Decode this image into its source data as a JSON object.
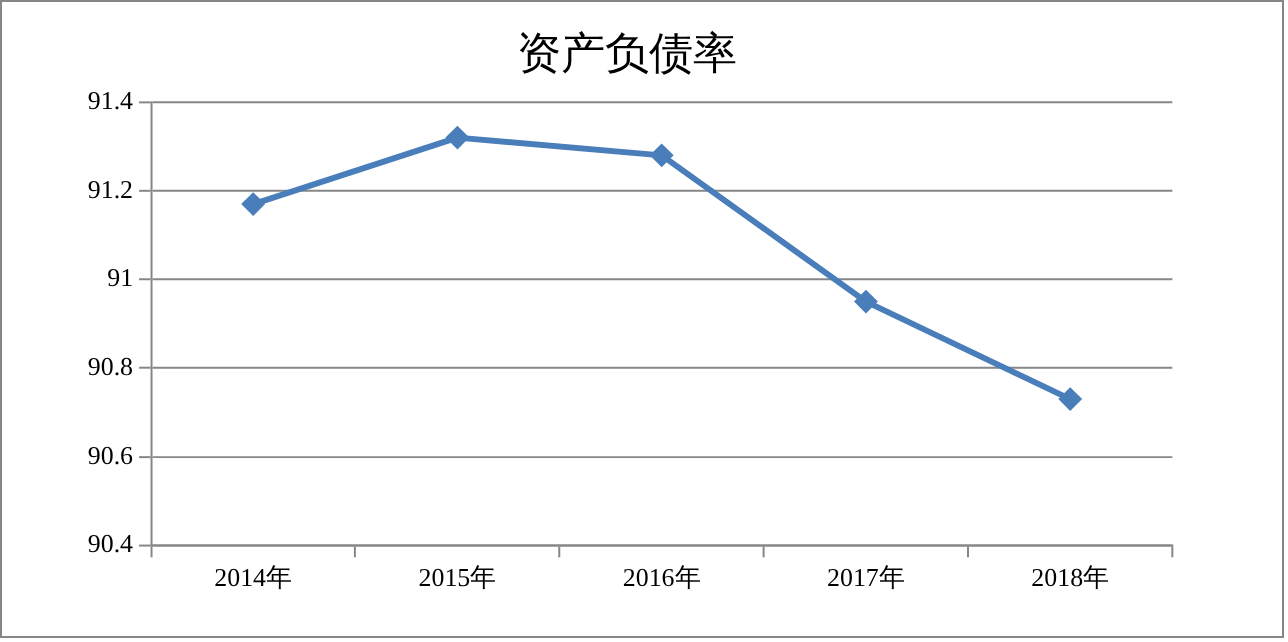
{
  "chart_data": {
    "type": "line",
    "title": "资产负债率",
    "categories": [
      "2014年",
      "2015年",
      "2016年",
      "2017年",
      "2018年"
    ],
    "series": [
      {
        "color": "#4a7ebb",
        "values": [
          91.17,
          91.32,
          91.28,
          90.95,
          90.73
        ]
      }
    ],
    "ylim": [
      90.4,
      91.4
    ],
    "yticks": [
      90.4,
      90.6,
      90.8,
      91,
      91.2,
      91.4
    ],
    "grid": "y",
    "legend": false,
    "marker": "diamond",
    "line_style": "solid"
  }
}
